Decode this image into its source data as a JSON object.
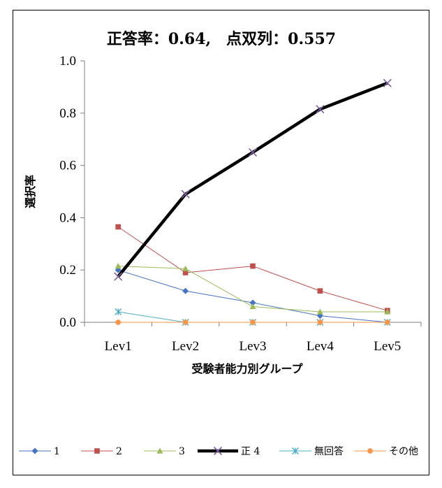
{
  "chart_data": {
    "type": "line",
    "title": "正答率：0.64,　点双列：0.557",
    "xlabel": "受験者能力別グループ",
    "ylabel": "選択率",
    "categories": [
      "Lev1",
      "Lev2",
      "Lev3",
      "Lev4",
      "Lev5"
    ],
    "ylim": [
      0,
      1.0
    ],
    "yticks": [
      "0.0",
      "0.2",
      "0.4",
      "0.6",
      "0.8",
      "1.0"
    ],
    "grid": false,
    "legend_position": "bottom",
    "series": [
      {
        "name": "1",
        "values": [
          0.2,
          0.12,
          0.075,
          0.025,
          0.0
        ],
        "color": "#4472C4",
        "marker": "diamond"
      },
      {
        "name": "2",
        "values": [
          0.365,
          0.19,
          0.215,
          0.12,
          0.045
        ],
        "color": "#C0504D",
        "marker": "square"
      },
      {
        "name": "3",
        "values": [
          0.215,
          0.205,
          0.06,
          0.04,
          0.04
        ],
        "color": "#9BBB59",
        "marker": "triangle"
      },
      {
        "name": "正 4",
        "values": [
          0.175,
          0.49,
          0.65,
          0.815,
          0.915
        ],
        "color": "#000000",
        "marker": "x",
        "bold": true,
        "marker_color": "#7F5FA0"
      },
      {
        "name": "無回答",
        "values": [
          0.04,
          0.0,
          0.0,
          0.0,
          0.0
        ],
        "color": "#4BACC6",
        "marker": "star"
      },
      {
        "name": "その他",
        "values": [
          0.0,
          0.0,
          0.0,
          0.0,
          0.0
        ],
        "color": "#F79646",
        "marker": "circle"
      }
    ]
  }
}
